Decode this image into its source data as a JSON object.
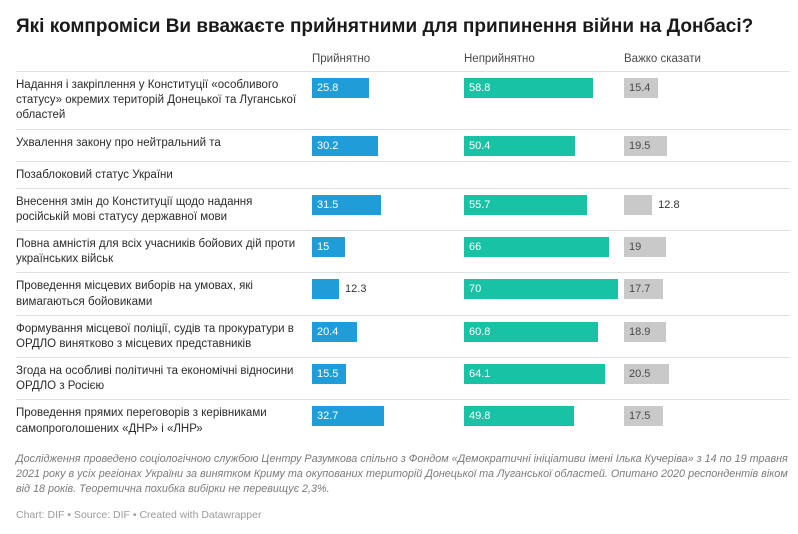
{
  "title": "Які компроміси Ви вважаєте прийнятними для припинення війни на Донбасі?",
  "columns": [
    {
      "key": "acceptable",
      "label": "Прийнятно",
      "color": "#1f9dd9",
      "value_text_color": "#ffffff"
    },
    {
      "key": "unacceptable",
      "label": "Неприйнятно",
      "color": "#17c3a4",
      "value_text_color": "#ffffff"
    },
    {
      "key": "hard-to-say",
      "label": "Важко сказати",
      "color": "#c9c9c9",
      "value_text_color": "#4a4a4a"
    }
  ],
  "rows": [
    {
      "label": "Надання і закріплення у Конституції «особливого статусу» окремих територій Донецької та Луганської областей",
      "values": [
        25.8,
        58.8,
        15.4
      ]
    },
    {
      "label": "Ухвалення закону про нейтральний та",
      "values": [
        30.2,
        50.4,
        19.5
      ]
    },
    {
      "label": "Позаблоковий статус України",
      "values": null
    },
    {
      "label": "Внесення змін до Конституції щодо надання російській мові статусу державної мови",
      "values": [
        31.5,
        55.7,
        12.8
      ]
    },
    {
      "label": "Повна амністія для всіх учасників бойових дій проти українських військ",
      "values": [
        15,
        66,
        19
      ]
    },
    {
      "label": "Проведення місцевих виборів на умовах, які вимагаються бойовиками",
      "values": [
        12.3,
        70,
        17.7
      ]
    },
    {
      "label": "Формування місцевої поліції, судів та прокуратури в ОРДЛО винятково з місцевих представників",
      "values": [
        20.4,
        60.8,
        18.9
      ]
    },
    {
      "label": "Згода на особливі політичні та економічні відносини ОРДЛО з Росією",
      "values": [
        15.5,
        64.1,
        20.5
      ]
    },
    {
      "label": "Проведення прямих переговорів з керівниками самопроголошених «ДНР» і «ЛНР»",
      "values": [
        32.7,
        49.8,
        17.5
      ]
    }
  ],
  "footer_note": "Дослідження проведено соціологічною службою Центру Разумкова спільно з Фондом «Демократичні ініціативи імені Ілька Кучеріва» з 14 по 19 травня 2021 року в усіх регіонах України за винятком Криму та окупованих територій Донецької та Луганської областей. Опитано 2020 респондентів віком від 18 років. Теоретична похибка вибірки не перевищує 2,3%.",
  "credits": "Chart: DIF • Source: DIF • Created with Datawrapper",
  "chart_data": {
    "type": "bar",
    "orientation": "horizontal",
    "title": "Які компроміси Ви вважаєте прийнятними для припинення війни на Донбасі?",
    "categories": [
      "Надання і закріплення у Конституції «особливого статусу» окремих територій Донецької та Луганської областей",
      "Ухвалення закону про нейтральний та позаблоковий статус України",
      "Внесення змін до Конституції щодо надання російській мові статусу державної мови",
      "Повна амністія для всіх учасників бойових дій проти українських військ",
      "Проведення місцевих виборів на умовах, які вимагаються бойовиками",
      "Формування місцевої поліції, судів та прокуратури в ОРДЛО винятково з місцевих представників",
      "Згода на особливі політичні та економічні відносини ОРДЛО з Росією",
      "Проведення прямих переговорів з керівниками самопроголошених «ДНР» і «ЛНР»"
    ],
    "series": [
      {
        "name": "Прийнятно",
        "values": [
          25.8,
          30.2,
          31.5,
          15,
          12.3,
          20.4,
          15.5,
          32.7
        ]
      },
      {
        "name": "Неприйнятно",
        "values": [
          58.8,
          50.4,
          55.7,
          66,
          70,
          60.8,
          64.1,
          49.8
        ]
      },
      {
        "name": "Важко сказати",
        "values": [
          15.4,
          19.5,
          12.8,
          19,
          17.7,
          18.9,
          20.5,
          17.5
        ]
      }
    ],
    "xlim": [
      0,
      100
    ],
    "unit": "percent",
    "grid": false,
    "legend_position": "top-as-column-headers"
  }
}
